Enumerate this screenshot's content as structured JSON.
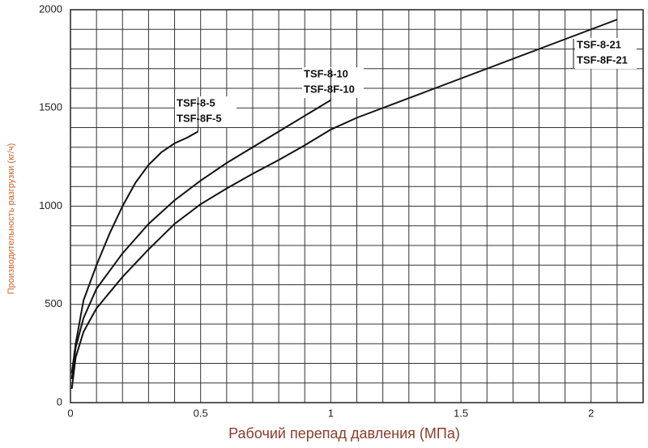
{
  "chart_data": {
    "type": "line",
    "xlabel": "Рабочий перепад давления (МПа)",
    "ylabel": "Производительность разгрузки (кг/ч)",
    "xlim": [
      0,
      2.2
    ],
    "ylim": [
      0,
      2000
    ],
    "xticks": [
      0,
      0.5,
      1,
      1.5,
      2
    ],
    "yticks": [
      0,
      500,
      1000,
      1500,
      2000
    ],
    "xgrid": [
      0,
      0.1,
      0.2,
      0.3,
      0.4,
      0.5,
      0.6,
      0.7,
      0.8,
      0.9,
      1,
      1.1,
      1.2,
      1.3,
      1.4,
      1.5,
      1.6,
      1.7,
      1.8,
      1.9,
      2,
      2.1,
      2.2
    ],
    "ygrid": [
      0,
      100,
      200,
      300,
      400,
      500,
      600,
      700,
      800,
      900,
      1000,
      1100,
      1200,
      1300,
      1400,
      1500,
      1600,
      1700,
      1800,
      1900,
      2000
    ],
    "grid": true,
    "series": [
      {
        "labels": [
          "TSF-8-5",
          "TSF-8F-5"
        ],
        "color": "#111111",
        "x": [
          0.005,
          0.02,
          0.05,
          0.1,
          0.15,
          0.2,
          0.25,
          0.3,
          0.35,
          0.4,
          0.45,
          0.49
        ],
        "values": [
          150,
          300,
          520,
          700,
          860,
          1000,
          1120,
          1210,
          1275,
          1320,
          1350,
          1380
        ]
      },
      {
        "labels": [
          "TSF-8-10",
          "TSF-8F-10"
        ],
        "color": "#111111",
        "x": [
          0.005,
          0.02,
          0.05,
          0.1,
          0.2,
          0.3,
          0.4,
          0.5,
          0.6,
          0.7,
          0.8,
          0.9,
          1.0
        ],
        "values": [
          120,
          280,
          430,
          580,
          760,
          910,
          1030,
          1130,
          1220,
          1300,
          1380,
          1460,
          1540
        ]
      },
      {
        "labels": [
          "TSF-8-21",
          "TSF-8F-21"
        ],
        "color": "#111111",
        "x": [
          0.005,
          0.02,
          0.05,
          0.1,
          0.2,
          0.3,
          0.4,
          0.5,
          0.6,
          0.7,
          0.8,
          0.9,
          1.0,
          1.1,
          1.2,
          1.3,
          1.4,
          1.5,
          1.6,
          1.7,
          1.8,
          1.9,
          2.0,
          2.1
        ],
        "values": [
          70,
          230,
          360,
          480,
          640,
          780,
          910,
          1010,
          1090,
          1165,
          1235,
          1310,
          1390,
          1450,
          1500,
          1550,
          1600,
          1650,
          1700,
          1750,
          1800,
          1850,
          1900,
          1950
        ]
      }
    ]
  }
}
